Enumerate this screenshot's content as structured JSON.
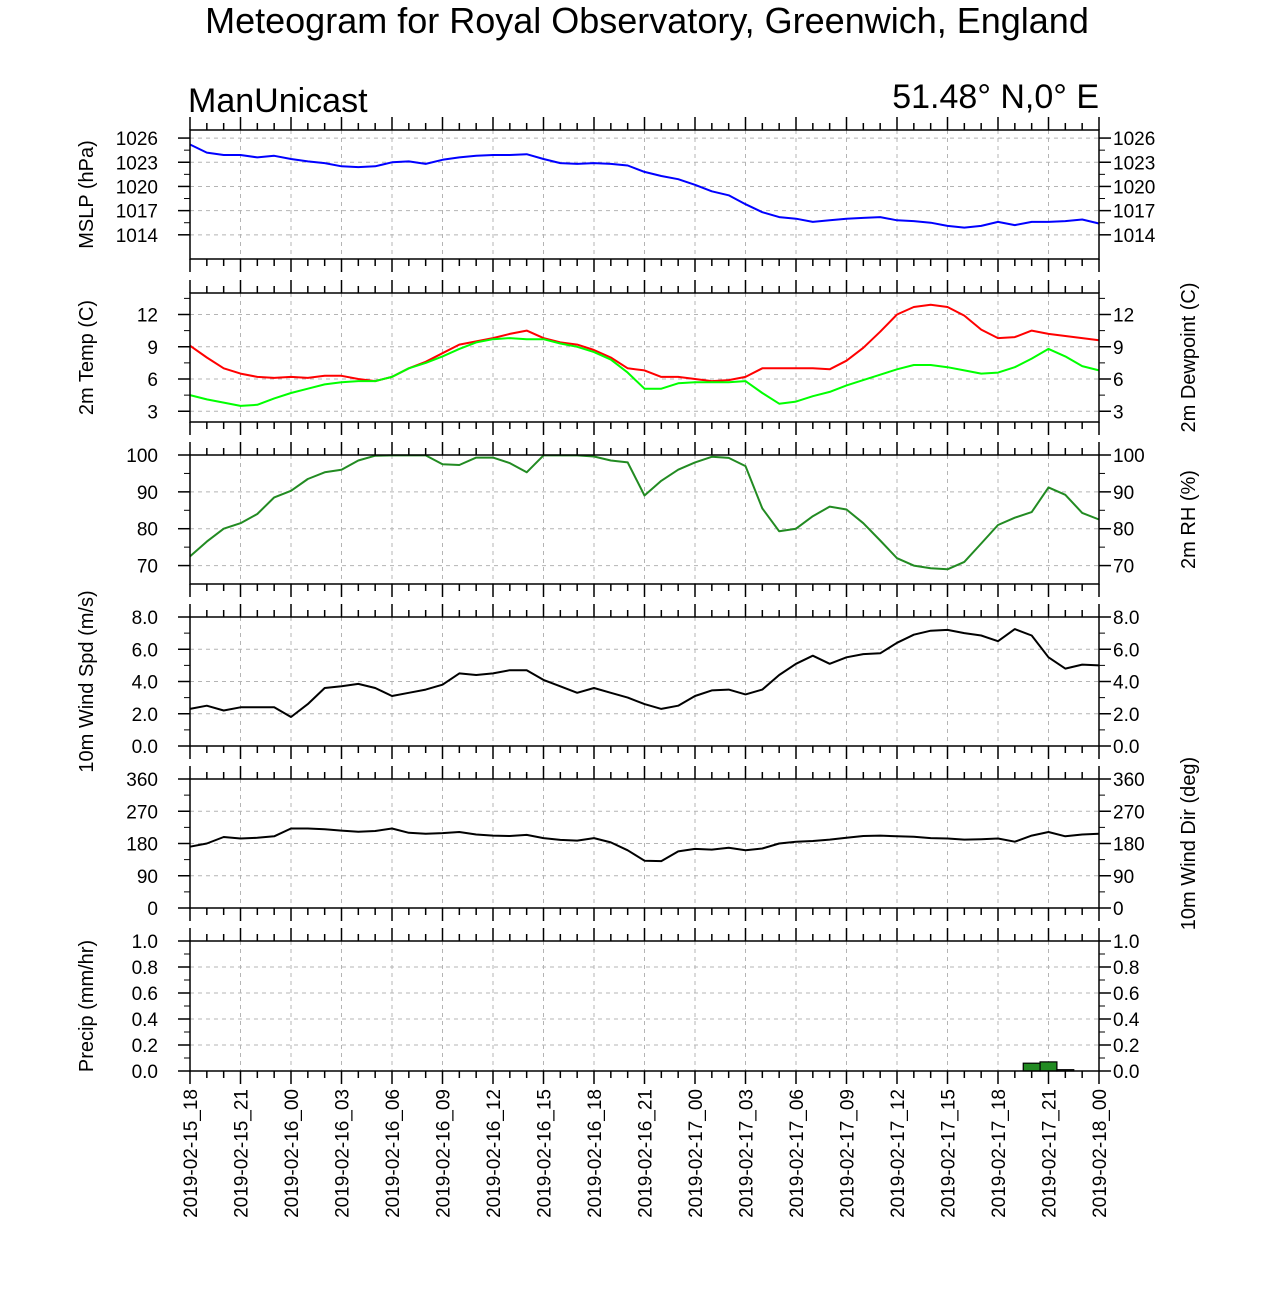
{
  "title": "Meteogram for Royal Observatory, Greenwich, England",
  "subtitle_left": "ManUnicast",
  "subtitle_right": "51.48° N,0° E",
  "time_labels": [
    "2019-02-15_18",
    "2019-02-15_21",
    "2019-02-16_00",
    "2019-02-16_03",
    "2019-02-16_06",
    "2019-02-16_09",
    "2019-02-16_12",
    "2019-02-16_15",
    "2019-02-16_18",
    "2019-02-16_21",
    "2019-02-17_00",
    "2019-02-17_03",
    "2019-02-17_06",
    "2019-02-17_09",
    "2019-02-17_12",
    "2019-02-17_15",
    "2019-02-17_18",
    "2019-02-17_21",
    "2019-02-18_00"
  ],
  "chart_data": [
    {
      "type": "line",
      "ylabel_left": "MSLP (hPa)",
      "ylim": [
        1011,
        1027
      ],
      "yticks": [
        1014,
        1017,
        1020,
        1023,
        1026
      ],
      "ytick_labels": [
        "1014",
        "1017",
        "1020",
        "1023",
        "1026"
      ],
      "right_ticks": true,
      "grid": true,
      "series": [
        {
          "color": "#0000ff",
          "values": [
            1025.2,
            1024.2,
            1023.9,
            1023.9,
            1023.6,
            1023.8,
            1023.4,
            1023.1,
            1022.9,
            1022.5,
            1022.4,
            1022.5,
            1023.0,
            1023.1,
            1022.8,
            1023.3,
            1023.6,
            1023.8,
            1023.9,
            1023.9,
            1024.0,
            1023.4,
            1022.9,
            1022.8,
            1022.9,
            1022.8,
            1022.6,
            1021.8,
            1021.3,
            1020.9,
            1020.2,
            1019.4,
            1018.9,
            1017.8,
            1016.8,
            1016.2,
            1016.0,
            1015.6,
            1015.8,
            1016.0,
            1016.1,
            1016.2,
            1015.8,
            1015.7,
            1015.5,
            1015.1,
            1014.9,
            1015.1,
            1015.6,
            1015.2,
            1015.6,
            1015.6,
            1015.7,
            1015.9,
            1015.4
          ]
        }
      ]
    },
    {
      "type": "line",
      "ylabel_left": "2m Temp (C)",
      "ylabel_right": "2m Dewpoint (C)",
      "ylim": [
        2,
        14
      ],
      "yticks": [
        3,
        6,
        9,
        12
      ],
      "ytick_labels": [
        "3",
        "6",
        "9",
        "12"
      ],
      "right_ticks": true,
      "grid": true,
      "series": [
        {
          "color": "#ff0000",
          "values": [
            9.1,
            8.0,
            7.0,
            6.5,
            6.2,
            6.1,
            6.2,
            6.1,
            6.3,
            6.3,
            6.0,
            5.8,
            6.2,
            7.0,
            7.6,
            8.4,
            9.2,
            9.5,
            9.8,
            10.2,
            10.5,
            9.8,
            9.4,
            9.2,
            8.7,
            8.0,
            7.0,
            6.8,
            6.2,
            6.2,
            6.0,
            5.8,
            5.9,
            6.2,
            7.0,
            7.0,
            7.0,
            7.0,
            6.9,
            7.7,
            8.9,
            10.4,
            12.0,
            12.7,
            12.9,
            12.7,
            11.9,
            10.6,
            9.8,
            9.9,
            10.5,
            10.2,
            10.0,
            9.8,
            9.6
          ]
        },
        {
          "color": "#00ff00",
          "values": [
            4.5,
            4.1,
            3.8,
            3.5,
            3.6,
            4.2,
            4.7,
            5.1,
            5.5,
            5.7,
            5.8,
            5.8,
            6.2,
            7.0,
            7.5,
            8.1,
            8.8,
            9.4,
            9.7,
            9.8,
            9.7,
            9.7,
            9.3,
            9.0,
            8.5,
            7.8,
            6.6,
            5.1,
            5.1,
            5.6,
            5.7,
            5.7,
            5.7,
            5.8,
            4.7,
            3.7,
            3.9,
            4.4,
            4.8,
            5.4,
            5.9,
            6.4,
            6.9,
            7.3,
            7.3,
            7.1,
            6.8,
            6.5,
            6.6,
            7.1,
            7.9,
            8.8,
            8.1,
            7.2,
            6.8
          ]
        }
      ]
    },
    {
      "type": "line",
      "ylabel_right": "2m RH (%)",
      "ylim": [
        65,
        100
      ],
      "yticks": [
        70,
        80,
        90,
        100
      ],
      "ytick_labels": [
        "70",
        "80",
        "90",
        "100"
      ],
      "right_ticks": true,
      "grid": true,
      "series": [
        {
          "color": "#228b22",
          "values": [
            72.5,
            76.5,
            80.0,
            81.5,
            84.0,
            88.5,
            90.3,
            93.5,
            95.3,
            96.0,
            98.5,
            99.8,
            99.9,
            99.9,
            99.9,
            97.5,
            97.3,
            99.3,
            99.3,
            97.8,
            95.3,
            99.9,
            99.9,
            99.9,
            99.6,
            98.5,
            98.0,
            89.0,
            93.0,
            96.0,
            98.0,
            99.5,
            99.2,
            97.0,
            85.5,
            79.3,
            80.0,
            83.4,
            86.0,
            85.2,
            81.5,
            76.8,
            72.0,
            70.0,
            69.3,
            69.0,
            71.0,
            76.0,
            81.0,
            83.0,
            84.5,
            91.2,
            89.2,
            84.3,
            82.5
          ]
        }
      ]
    },
    {
      "type": "line",
      "ylabel_left": "10m Wind Spd (m/s)",
      "ylim": [
        0,
        8
      ],
      "yticks": [
        0,
        2,
        4,
        6,
        8
      ],
      "ytick_labels": [
        "0.0",
        "2.0",
        "4.0",
        "6.0",
        "8.0"
      ],
      "right_ticks": true,
      "grid": true,
      "series": [
        {
          "color": "#000000",
          "values": [
            2.3,
            2.5,
            2.2,
            2.4,
            2.4,
            2.4,
            1.8,
            2.6,
            3.6,
            3.7,
            3.85,
            3.6,
            3.1,
            3.3,
            3.5,
            3.8,
            4.5,
            4.4,
            4.5,
            4.7,
            4.7,
            4.1,
            3.7,
            3.3,
            3.6,
            3.3,
            3.0,
            2.6,
            2.3,
            2.5,
            3.1,
            3.45,
            3.5,
            3.2,
            3.5,
            4.4,
            5.1,
            5.6,
            5.1,
            5.5,
            5.7,
            5.75,
            6.4,
            6.9,
            7.15,
            7.2,
            7.0,
            6.85,
            6.5,
            7.25,
            6.85,
            5.5,
            4.8,
            5.05,
            5.0
          ]
        }
      ]
    },
    {
      "type": "line",
      "ylabel_right": "10m Wind Dir (deg)",
      "ylim": [
        0,
        360
      ],
      "yticks": [
        0,
        90,
        180,
        270,
        360
      ],
      "ytick_labels": [
        "0",
        "90",
        "180",
        "270",
        "360"
      ],
      "right_ticks": true,
      "grid": true,
      "series": [
        {
          "color": "#000000",
          "values": [
            171,
            180,
            198,
            194,
            196,
            200,
            222,
            222,
            220,
            216,
            213,
            215,
            222,
            210,
            207,
            209,
            212,
            205,
            202,
            201,
            204,
            195,
            190,
            188,
            195,
            183,
            161,
            132,
            131,
            158,
            165,
            163,
            168,
            161,
            166,
            180,
            185,
            187,
            191,
            196,
            201,
            202,
            200,
            199,
            195,
            194,
            191,
            192,
            194,
            185,
            202,
            212,
            200,
            205,
            207
          ]
        }
      ]
    },
    {
      "type": "bar",
      "ylabel_left": "Precip (mm/hr)",
      "ylim": [
        0,
        1
      ],
      "yticks": [
        0,
        0.2,
        0.4,
        0.6,
        0.8,
        1.0
      ],
      "ytick_labels": [
        "0.0",
        "0.2",
        "0.4",
        "0.6",
        "0.8",
        "1.0"
      ],
      "right_ticks": true,
      "grid": true,
      "series": [
        {
          "color": "#228b22",
          "values": [
            0,
            0,
            0,
            0,
            0,
            0,
            0,
            0,
            0,
            0,
            0,
            0,
            0,
            0,
            0,
            0,
            0,
            0,
            0,
            0,
            0,
            0,
            0,
            0,
            0,
            0,
            0,
            0,
            0,
            0,
            0,
            0,
            0,
            0,
            0,
            0,
            0,
            0,
            0,
            0,
            0,
            0,
            0,
            0,
            0,
            0,
            0,
            0,
            0,
            0,
            0.06,
            0.07,
            0.01,
            0,
            0
          ]
        }
      ]
    }
  ]
}
